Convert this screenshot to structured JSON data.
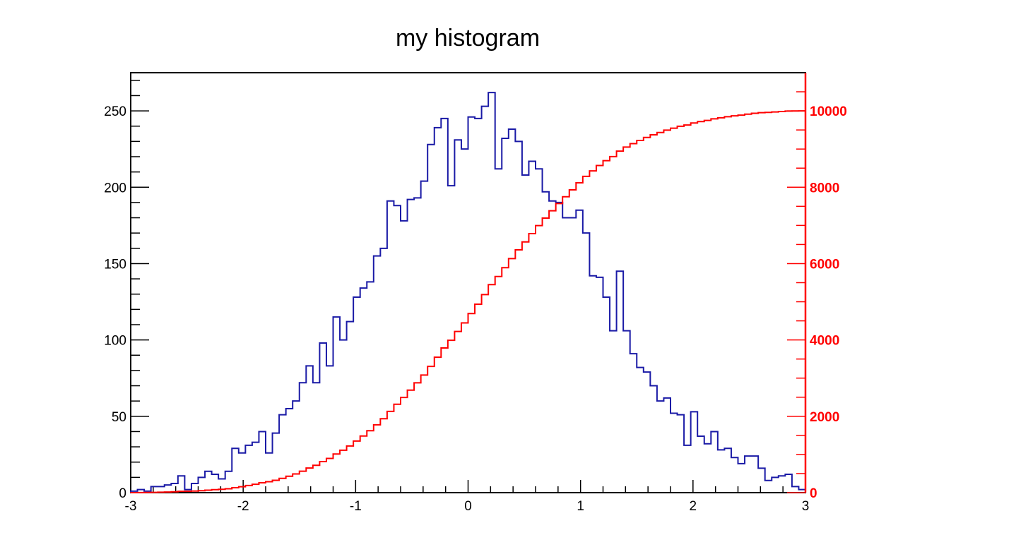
{
  "chart_data": {
    "type": "line",
    "title": "my histogram",
    "xlabel": "",
    "ylabel": "",
    "xlim": [
      -3,
      3
    ],
    "ylim_left": [
      0,
      275
    ],
    "ylim_right": [
      0,
      11000
    ],
    "x_ticks": [
      "-3",
      "-2",
      "-1",
      "0",
      "1",
      "2",
      "3"
    ],
    "y_ticks_left": [
      "0",
      "50",
      "100",
      "150",
      "200",
      "250"
    ],
    "y_ticks_right": [
      "0",
      "2000",
      "4000",
      "6000",
      "8000",
      "10000"
    ],
    "grid": false,
    "bins": 100,
    "series": [
      {
        "axis": "left",
        "style": "histogram-step",
        "color": "#1a1aa6",
        "values": [
          1,
          2,
          1,
          4,
          4,
          5,
          6,
          11,
          2,
          6,
          10,
          14,
          12,
          9,
          14,
          29,
          26,
          31,
          33,
          40,
          26,
          39,
          51,
          55,
          60,
          72,
          83,
          72,
          98,
          83,
          115,
          100,
          112,
          128,
          134,
          138,
          155,
          160,
          191,
          188,
          178,
          192,
          193,
          204,
          228,
          239,
          245,
          201,
          231,
          225,
          246,
          245,
          253,
          262,
          212,
          232,
          238,
          230,
          208,
          217,
          212,
          197,
          191,
          190,
          180,
          180,
          185,
          170,
          142,
          141,
          128,
          106,
          145,
          106,
          91,
          82,
          79,
          70,
          60,
          62,
          52,
          51,
          31,
          53,
          37,
          32,
          40,
          28,
          29,
          23,
          19,
          24,
          24,
          16,
          8,
          10,
          11,
          12,
          4,
          2
        ]
      },
      {
        "axis": "right",
        "style": "histogram-step",
        "color": "#ff0000",
        "cumulative_of_series": 0
      }
    ]
  }
}
